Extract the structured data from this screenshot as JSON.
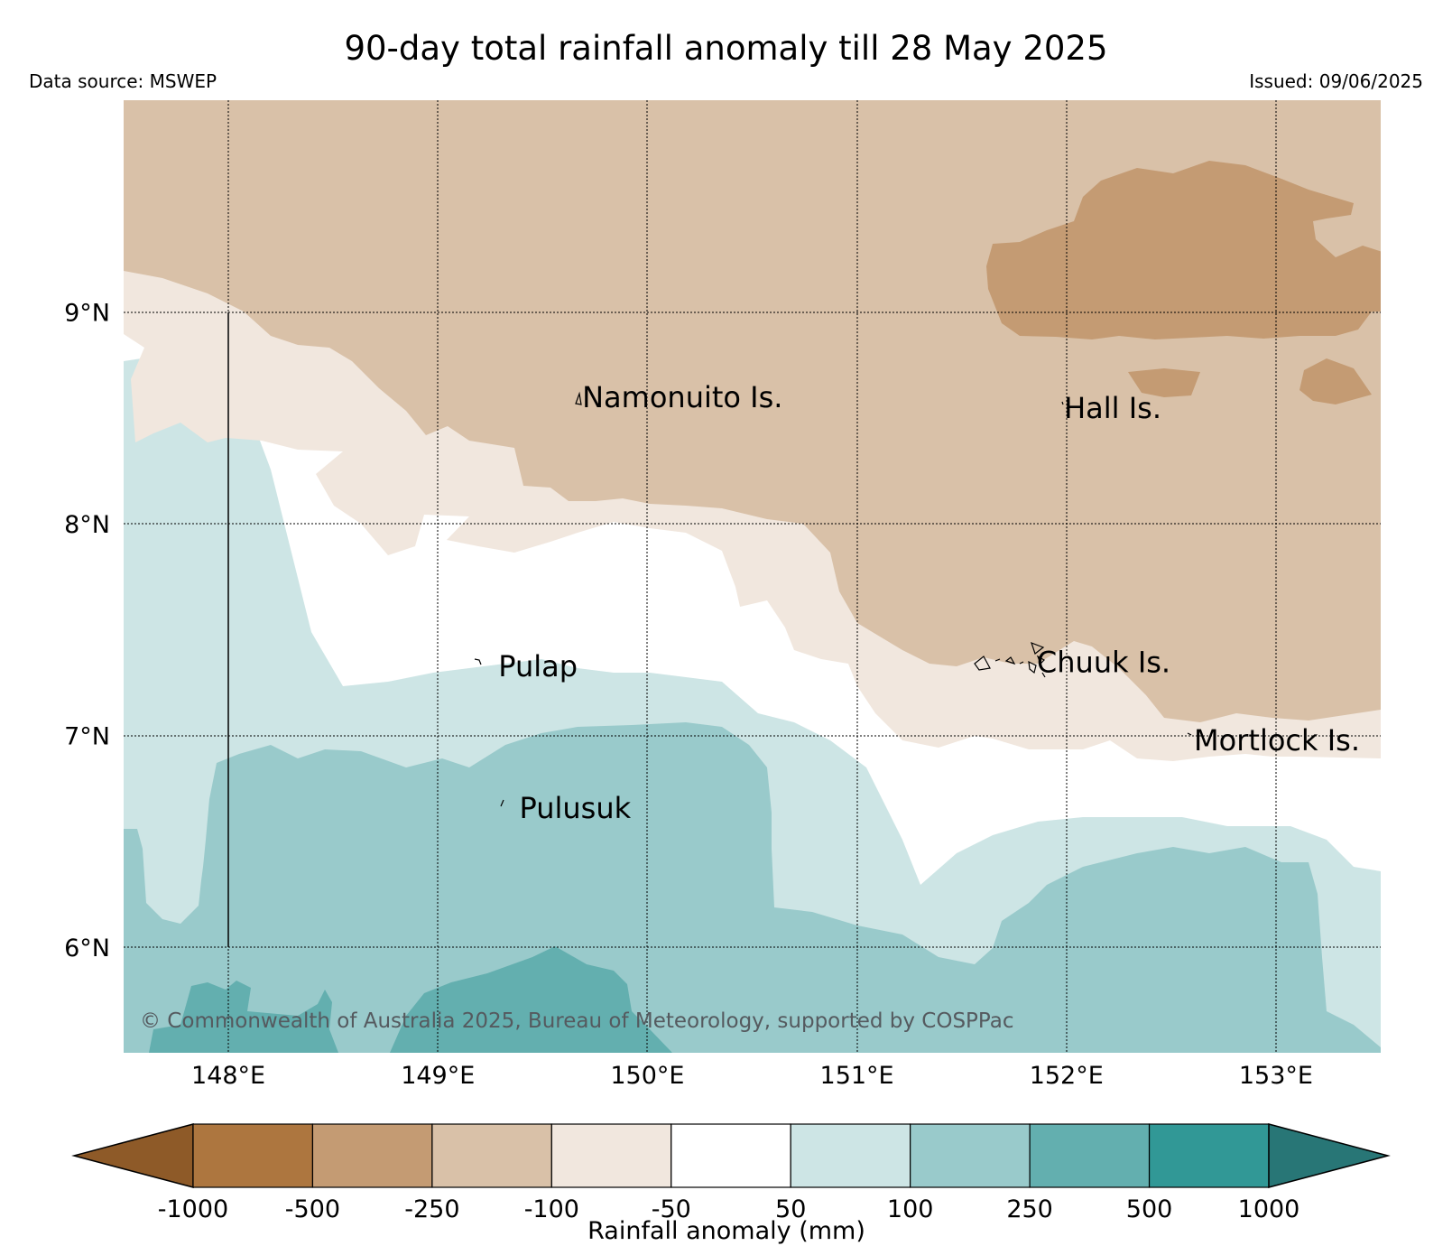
{
  "title": "90-day total rainfall anomaly till 28 May 2025",
  "source": "Data source: MSWEP",
  "issued": "Issued: 09/06/2025",
  "copyright": "© Commonwealth of Australia 2025, Bureau of Meteorology, supported by COSPPac",
  "map": {
    "lon_range": [
      147.5,
      153.5
    ],
    "lat_range": [
      5.5,
      10.0
    ],
    "lon_ticks": [
      {
        "value": 148,
        "label": "148°E"
      },
      {
        "value": 149,
        "label": "149°E"
      },
      {
        "value": 150,
        "label": "150°E"
      },
      {
        "value": 151,
        "label": "151°E"
      },
      {
        "value": 152,
        "label": "152°E"
      },
      {
        "value": 153,
        "label": "153°E"
      }
    ],
    "lat_ticks": [
      {
        "value": 9,
        "label": "9°N"
      },
      {
        "value": 8,
        "label": "8°N"
      },
      {
        "value": 7,
        "label": "7°N"
      },
      {
        "value": 6,
        "label": "6°N"
      }
    ],
    "grid": true,
    "places": [
      {
        "name": "Namonuito Is.",
        "lon": 149.68,
        "lat": 8.6
      },
      {
        "name": "Hall Is.",
        "lon": 151.98,
        "lat": 8.55
      },
      {
        "name": "Pulap",
        "lon": 149.28,
        "lat": 7.33
      },
      {
        "name": "Chuuk Is.",
        "lon": 151.85,
        "lat": 7.35
      },
      {
        "name": "Mortlock Is.",
        "lon": 152.6,
        "lat": 6.98
      },
      {
        "name": "Pulusuk",
        "lon": 149.38,
        "lat": 6.66
      }
    ]
  },
  "legend": {
    "label": "Rainfall anomaly (mm)",
    "ticks": [
      "-1000",
      "-500",
      "-250",
      "-100",
      "-50",
      "50",
      "100",
      "250",
      "500",
      "1000"
    ],
    "colors": [
      "#8e5a28",
      "#ad763f",
      "#c49b73",
      "#d9c1a8",
      "#f1e7de",
      "#ffffff",
      "#cde5e5",
      "#99cacb",
      "#63afaf",
      "#319896",
      "#287676"
    ]
  }
}
